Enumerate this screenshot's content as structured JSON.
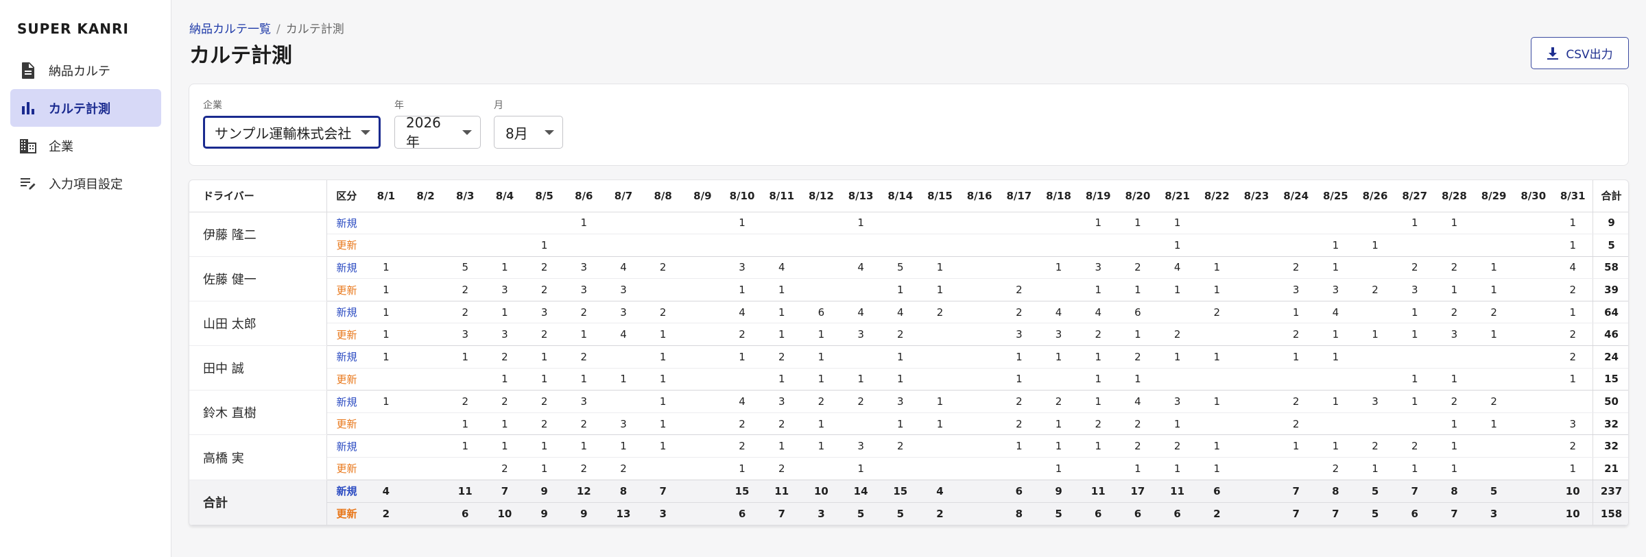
{
  "brand": "SUPER KANRI",
  "sidebar": {
    "items": [
      {
        "label": "納品カルテ",
        "icon": "document-icon",
        "active": false
      },
      {
        "label": "カルテ計測",
        "icon": "bar-chart-icon",
        "active": true
      },
      {
        "label": "企業",
        "icon": "building-icon",
        "active": false
      },
      {
        "label": "入力項目設定",
        "icon": "edit-list-icon",
        "active": false
      }
    ]
  },
  "header": {
    "breadcrumb_link": "納品カルテ一覧",
    "breadcrumb_sep": "/",
    "breadcrumb_current": "カルテ計測",
    "title": "カルテ計測",
    "csv_button": "CSV出力"
  },
  "filters": {
    "company_label": "企業",
    "company_value": "サンプル運輸株式会社",
    "year_label": "年",
    "year_value": "2026年",
    "month_label": "月",
    "month_value": "8月"
  },
  "table": {
    "driver_header": "ドライバー",
    "kubun_header": "区分",
    "total_header": "合計",
    "new_label": "新規",
    "update_label": "更新",
    "days": [
      "8/1",
      "8/2",
      "8/3",
      "8/4",
      "8/5",
      "8/6",
      "8/7",
      "8/8",
      "8/9",
      "8/10",
      "8/11",
      "8/12",
      "8/13",
      "8/14",
      "8/15",
      "8/16",
      "8/17",
      "8/18",
      "8/19",
      "8/20",
      "8/21",
      "8/22",
      "8/23",
      "8/24",
      "8/25",
      "8/26",
      "8/27",
      "8/28",
      "8/29",
      "8/30",
      "8/31"
    ],
    "drivers": [
      {
        "name": "伊藤 隆二",
        "new": [
          "",
          "",
          "",
          "",
          "",
          "1",
          "",
          "",
          "",
          "1",
          "",
          "",
          "1",
          "",
          "",
          "",
          "",
          "",
          "1",
          "1",
          "1",
          "",
          "",
          "",
          "",
          "",
          "1",
          "1",
          "",
          "",
          "1"
        ],
        "new_total": "9",
        "upd": [
          "",
          "",
          "",
          "",
          "1",
          "",
          "",
          "",
          "",
          "",
          "",
          "",
          "",
          "",
          "",
          "",
          "",
          "",
          "",
          "",
          "1",
          "",
          "",
          "",
          "1",
          "1",
          "",
          "",
          "",
          "",
          "1"
        ],
        "upd_total": "5"
      },
      {
        "name": "佐藤 健一",
        "new": [
          "1",
          "",
          "5",
          "1",
          "2",
          "3",
          "4",
          "2",
          "",
          "3",
          "4",
          "",
          "4",
          "5",
          "1",
          "",
          "",
          "1",
          "3",
          "2",
          "4",
          "1",
          "",
          "2",
          "1",
          "",
          "2",
          "2",
          "1",
          "",
          "4"
        ],
        "new_total": "58",
        "upd": [
          "1",
          "",
          "2",
          "3",
          "2",
          "3",
          "3",
          "",
          "",
          "1",
          "1",
          "",
          "",
          "1",
          "1",
          "",
          "2",
          "",
          "1",
          "1",
          "1",
          "1",
          "",
          "3",
          "3",
          "2",
          "3",
          "1",
          "1",
          "",
          "2"
        ],
        "upd_total": "39"
      },
      {
        "name": "山田 太郎",
        "new": [
          "1",
          "",
          "2",
          "1",
          "3",
          "2",
          "3",
          "2",
          "",
          "4",
          "1",
          "6",
          "4",
          "4",
          "2",
          "",
          "2",
          "4",
          "4",
          "6",
          "",
          "2",
          "",
          "1",
          "4",
          "",
          "1",
          "2",
          "2",
          "",
          "1"
        ],
        "new_total": "64",
        "upd": [
          "1",
          "",
          "3",
          "3",
          "2",
          "1",
          "4",
          "1",
          "",
          "2",
          "1",
          "1",
          "3",
          "2",
          "",
          "",
          "3",
          "3",
          "2",
          "1",
          "2",
          "",
          "",
          "2",
          "1",
          "1",
          "1",
          "3",
          "1",
          "",
          "2"
        ],
        "upd_total": "46"
      },
      {
        "name": "田中 誠",
        "new": [
          "1",
          "",
          "1",
          "2",
          "1",
          "2",
          "",
          "1",
          "",
          "1",
          "2",
          "1",
          "",
          "1",
          "",
          "",
          "1",
          "1",
          "1",
          "2",
          "1",
          "1",
          "",
          "1",
          "1",
          "",
          "",
          "",
          "",
          "",
          "2"
        ],
        "new_total": "24",
        "upd": [
          "",
          "",
          "",
          "1",
          "1",
          "1",
          "1",
          "1",
          "",
          "",
          "1",
          "1",
          "1",
          "1",
          "",
          "",
          "1",
          "",
          "1",
          "1",
          "",
          "",
          "",
          "",
          "",
          "",
          "1",
          "1",
          "",
          "",
          "1"
        ],
        "upd_total": "15"
      },
      {
        "name": "鈴木 直樹",
        "new": [
          "1",
          "",
          "2",
          "2",
          "2",
          "3",
          "",
          "1",
          "",
          "4",
          "3",
          "2",
          "2",
          "3",
          "1",
          "",
          "2",
          "2",
          "1",
          "4",
          "3",
          "1",
          "",
          "2",
          "1",
          "3",
          "1",
          "2",
          "2",
          "",
          ""
        ],
        "new_total": "50",
        "upd": [
          "",
          "",
          "1",
          "1",
          "2",
          "2",
          "3",
          "1",
          "",
          "2",
          "2",
          "1",
          "",
          "1",
          "1",
          "",
          "2",
          "1",
          "2",
          "2",
          "1",
          "",
          "",
          "2",
          "",
          "",
          "",
          "1",
          "1",
          "",
          "3"
        ],
        "upd_total": "32"
      },
      {
        "name": "高橋 実",
        "new": [
          "",
          "",
          "1",
          "1",
          "1",
          "1",
          "1",
          "1",
          "",
          "2",
          "1",
          "1",
          "3",
          "2",
          "",
          "",
          "1",
          "1",
          "1",
          "2",
          "2",
          "1",
          "",
          "1",
          "1",
          "2",
          "2",
          "1",
          "",
          "",
          "2"
        ],
        "new_total": "32",
        "upd": [
          "",
          "",
          "",
          "2",
          "1",
          "2",
          "2",
          "",
          "",
          "1",
          "2",
          "",
          "1",
          "",
          "",
          "",
          "",
          "1",
          "",
          "1",
          "1",
          "1",
          "",
          "",
          "2",
          "1",
          "1",
          "1",
          "",
          "",
          "1"
        ],
        "upd_total": "21"
      }
    ],
    "totals": {
      "label": "合計",
      "new": [
        "4",
        "",
        "11",
        "7",
        "9",
        "12",
        "8",
        "7",
        "",
        "15",
        "11",
        "10",
        "14",
        "15",
        "4",
        "",
        "6",
        "9",
        "11",
        "17",
        "11",
        "6",
        "",
        "7",
        "8",
        "5",
        "7",
        "8",
        "5",
        "",
        "10"
      ],
      "new_total": "237",
      "upd": [
        "2",
        "",
        "6",
        "10",
        "9",
        "9",
        "13",
        "3",
        "",
        "6",
        "7",
        "3",
        "5",
        "5",
        "2",
        "",
        "8",
        "5",
        "6",
        "6",
        "6",
        "2",
        "",
        "7",
        "7",
        "5",
        "6",
        "7",
        "3",
        "",
        "10"
      ],
      "upd_total": "158"
    }
  }
}
